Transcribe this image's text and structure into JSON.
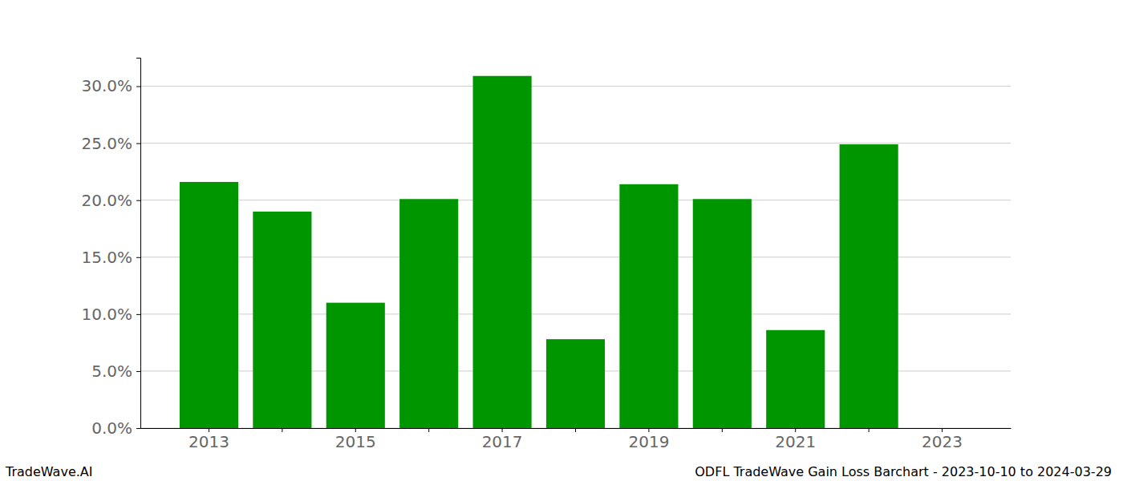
{
  "chart_data": {
    "type": "bar",
    "title": "ODFL TradeWave Gain Loss Barchart - 2023-10-10 to 2024-03-29",
    "source": "TradeWave.AI",
    "categories": [
      "2013",
      null,
      "2015",
      null,
      "2017",
      null,
      "2019",
      null,
      "2021",
      null,
      "2023"
    ],
    "values": [
      21.6,
      19.0,
      11.0,
      20.1,
      30.9,
      7.8,
      21.4,
      20.1,
      8.6,
      24.9,
      null
    ],
    "color": "#009600",
    "ylim": [
      0,
      32.5
    ],
    "yticks": [
      {
        "value": 0,
        "label": "0.0%"
      },
      {
        "value": 5,
        "label": "5.0%"
      },
      {
        "value": 10,
        "label": "10.0%"
      },
      {
        "value": 15,
        "label": "15.0%"
      },
      {
        "value": 20,
        "label": "20.0%"
      },
      {
        "value": 25,
        "label": "25.0%"
      },
      {
        "value": 30,
        "label": "30.0%"
      }
    ],
    "grid": true
  }
}
